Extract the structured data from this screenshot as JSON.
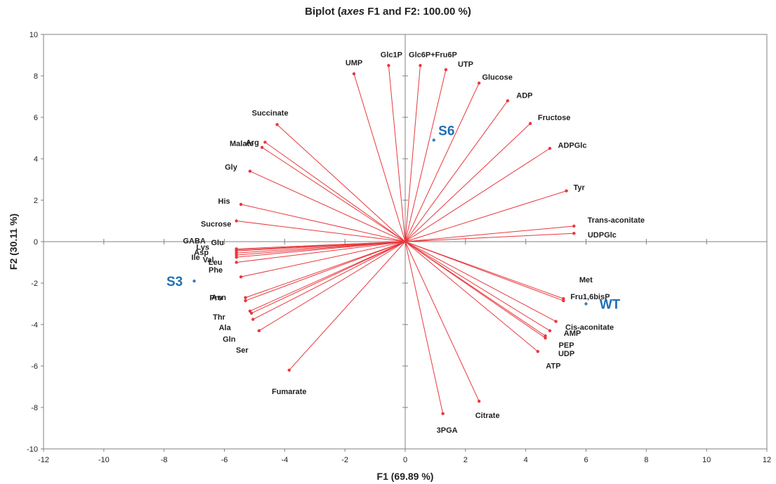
{
  "chart_data": {
    "type": "scatter",
    "title": {
      "prefix": "Biplot (",
      "italic": "axes",
      "suffix": " F1 and F2: 100.00 %)"
    },
    "xlabel": "F1 (69.89 %)",
    "ylabel": "F2 (30.11 %)",
    "xlim": [
      -12,
      12
    ],
    "ylim": [
      -10,
      10
    ],
    "xticks": [
      -12,
      -10,
      -8,
      -6,
      -4,
      -2,
      0,
      2,
      4,
      6,
      8,
      10,
      12
    ],
    "yticks": [
      -10,
      -8,
      -6,
      -4,
      -2,
      0,
      2,
      4,
      6,
      8,
      10
    ],
    "grid": false,
    "colors": {
      "variables": "#e8383d",
      "observations": "#3a7fc1",
      "observation_labels": "#1f6fb5"
    },
    "variables": [
      {
        "label": "UMP",
        "x": -1.7,
        "y": 8.1
      },
      {
        "label": "Glc1P",
        "x": -0.55,
        "y": 8.5
      },
      {
        "label": "Glc6P+Fru6P",
        "x": 0.5,
        "y": 8.5
      },
      {
        "label": "UTP",
        "x": 1.35,
        "y": 8.3
      },
      {
        "label": "Glucose",
        "x": 2.45,
        "y": 7.65
      },
      {
        "label": "ADP",
        "x": 3.4,
        "y": 6.8
      },
      {
        "label": "Fructose",
        "x": 4.15,
        "y": 5.7
      },
      {
        "label": "ADPGlc",
        "x": 4.8,
        "y": 4.5
      },
      {
        "label": "Tyr",
        "x": 5.35,
        "y": 2.45
      },
      {
        "label": "Trans-aconitate",
        "x": 5.6,
        "y": 0.75
      },
      {
        "label": "UDPGlc",
        "x": 5.6,
        "y": 0.4
      },
      {
        "label": "Met",
        "x": 5.25,
        "y": -2.75
      },
      {
        "label": "Fru1,6bisP",
        "x": 5.25,
        "y": -2.85
      },
      {
        "label": "Cis-aconitate",
        "x": 5.0,
        "y": -3.85
      },
      {
        "label": "AMP",
        "x": 4.8,
        "y": -4.3
      },
      {
        "label": "PEP",
        "x": 4.65,
        "y": -4.55
      },
      {
        "label": "UDP",
        "x": 4.65,
        "y": -4.65
      },
      {
        "label": "ATP",
        "x": 4.4,
        "y": -5.3
      },
      {
        "label": "Citrate",
        "x": 2.45,
        "y": -7.7
      },
      {
        "label": "3PGA",
        "x": 1.25,
        "y": -8.3
      },
      {
        "label": "Fumarate",
        "x": -3.85,
        "y": -6.2
      },
      {
        "label": "Ser",
        "x": -4.85,
        "y": -4.3
      },
      {
        "label": "Gln",
        "x": -5.05,
        "y": -3.75
      },
      {
        "label": "Ala",
        "x": -5.1,
        "y": -3.45
      },
      {
        "label": "Thr",
        "x": -5.15,
        "y": -3.35
      },
      {
        "label": "Asn",
        "x": -5.3,
        "y": -2.85
      },
      {
        "label": "Pro",
        "x": -5.3,
        "y": -2.7
      },
      {
        "label": "Phe",
        "x": -5.45,
        "y": -1.7
      },
      {
        "label": "Val",
        "x": -5.6,
        "y": -1.0
      },
      {
        "label": "Leu",
        "x": -5.6,
        "y": -0.75
      },
      {
        "label": "Ile",
        "x": -5.6,
        "y": -0.65
      },
      {
        "label": "Asp",
        "x": -5.6,
        "y": -0.55
      },
      {
        "label": "Lys",
        "x": -5.6,
        "y": -0.45
      },
      {
        "label": "Glu",
        "x": -5.6,
        "y": -0.4
      },
      {
        "label": "GABA",
        "x": -5.6,
        "y": -0.35
      },
      {
        "label": "Sucrose",
        "x": -5.6,
        "y": 1.0
      },
      {
        "label": "His",
        "x": -5.45,
        "y": 1.8
      },
      {
        "label": "Gly",
        "x": -5.15,
        "y": 3.4
      },
      {
        "label": "Malate",
        "x": -4.75,
        "y": 4.55
      },
      {
        "label": "Arg",
        "x": -4.65,
        "y": 4.8
      },
      {
        "label": "Succinate",
        "x": -4.25,
        "y": 5.65
      }
    ],
    "observations": [
      {
        "label": "S6",
        "x": 0.95,
        "y": 4.9
      },
      {
        "label": "S3",
        "x": -7.0,
        "y": -1.9
      },
      {
        "label": "WT",
        "x": 6.0,
        "y": -3.0
      }
    ]
  }
}
